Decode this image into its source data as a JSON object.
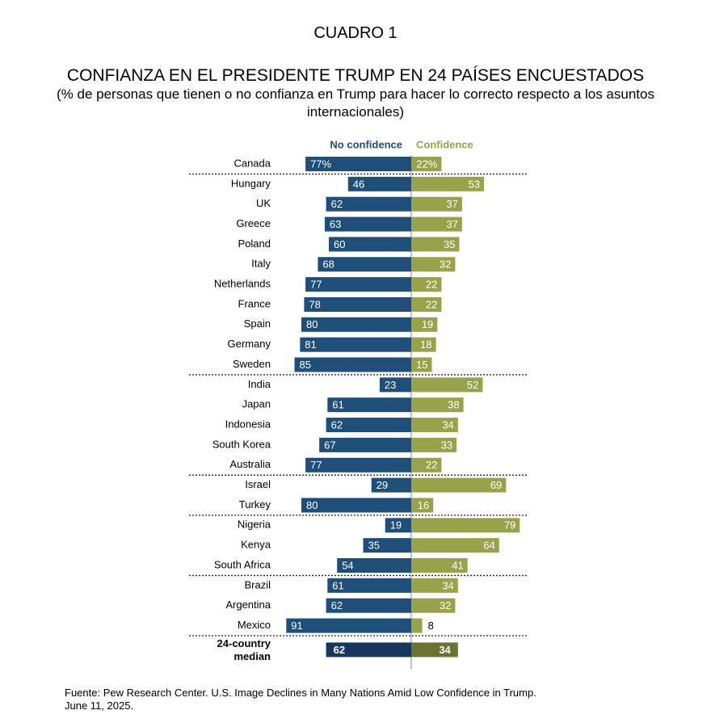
{
  "header": {
    "table_number": "CUADRO 1",
    "title": "CONFIANZA EN EL PRESIDENTE TRUMP EN 24 PAÍSES ENCUESTADOS",
    "subtitle": "(% de personas que tienen o no confianza en Trump para hacer lo correcto respecto a los asuntos internacionales)"
  },
  "source": {
    "line1": "Fuente: Pew Research Center. U.S. Image Declines in Many Nations Amid Low Confidence in Trump.",
    "line2": "June 11, 2025."
  },
  "colors": {
    "no_confidence": "#1f4e79",
    "confidence": "#98a24b",
    "median_no_confidence": "#16365c",
    "median_confidence": "#6b7334"
  },
  "chart_data": {
    "type": "bar",
    "orientation": "diverging-horizontal",
    "series": [
      {
        "name": "No confidence",
        "side": "left"
      },
      {
        "name": "Confidence",
        "side": "right"
      }
    ],
    "categories": [
      "Canada",
      "Hungary",
      "UK",
      "Greece",
      "Poland",
      "Italy",
      "Netherlands",
      "France",
      "Spain",
      "Germany",
      "Sweden",
      "India",
      "Japan",
      "Indonesia",
      "South Korea",
      "Australia",
      "Israel",
      "Turkey",
      "Nigeria",
      "Kenya",
      "South Africa",
      "Brazil",
      "Argentina",
      "Mexico"
    ],
    "no_confidence": [
      77,
      46,
      62,
      63,
      60,
      68,
      77,
      78,
      80,
      81,
      85,
      23,
      61,
      62,
      67,
      77,
      29,
      80,
      19,
      35,
      54,
      61,
      62,
      91
    ],
    "confidence": [
      22,
      53,
      37,
      37,
      35,
      32,
      22,
      22,
      19,
      18,
      15,
      52,
      38,
      34,
      33,
      22,
      69,
      16,
      79,
      64,
      41,
      34,
      32,
      8
    ],
    "value_labels_no_confidence": [
      "77%",
      "46",
      "62",
      "63",
      "60",
      "68",
      "77",
      "78",
      "80",
      "81",
      "85",
      "23",
      "61",
      "62",
      "67",
      "77",
      "29",
      "80",
      "19",
      "35",
      "54",
      "61",
      "62",
      "91"
    ],
    "value_labels_confidence": [
      "22%",
      "53",
      "37",
      "37",
      "35",
      "32",
      "22",
      "22",
      "19",
      "18",
      "15",
      "52",
      "38",
      "34",
      "33",
      "22",
      "69",
      "16",
      "79",
      "64",
      "41",
      "34",
      "32",
      "8"
    ],
    "group_ends_after": [
      "Canada",
      "Sweden",
      "Australia",
      "Turkey",
      "South Africa",
      "Mexico"
    ],
    "median": {
      "label_line1": "24-country",
      "label_line2": "median",
      "no_confidence": 62,
      "confidence": 34
    },
    "xlim": [
      0,
      100
    ]
  }
}
